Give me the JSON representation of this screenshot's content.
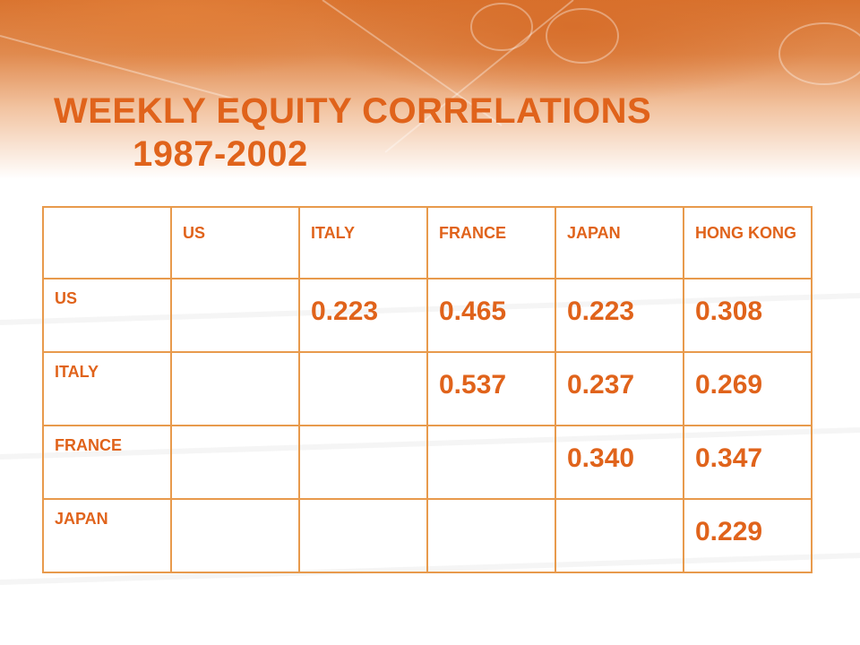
{
  "slide": {
    "title_line1": "WEEKLY EQUITY CORRELATIONS",
    "title_line2": "1987-2002"
  },
  "table": {
    "column_headers": [
      "",
      "US",
      "ITALY",
      "FRANCE",
      "JAPAN",
      "HONG KONG"
    ],
    "rows": [
      {
        "label": "US",
        "values": [
          "",
          "0.223",
          "0.465",
          "0.223",
          "0.308"
        ]
      },
      {
        "label": "ITALY",
        "values": [
          "",
          "",
          "0.537",
          "0.237",
          "0.269"
        ]
      },
      {
        "label": "FRANCE",
        "values": [
          "",
          "",
          "",
          "0.340",
          "0.347"
        ]
      },
      {
        "label": "JAPAN",
        "values": [
          "",
          "",
          "",
          "",
          "0.229"
        ]
      }
    ]
  },
  "colors": {
    "title": "#e0631b",
    "border": "#e89a4c",
    "banner": "#d9732f"
  }
}
